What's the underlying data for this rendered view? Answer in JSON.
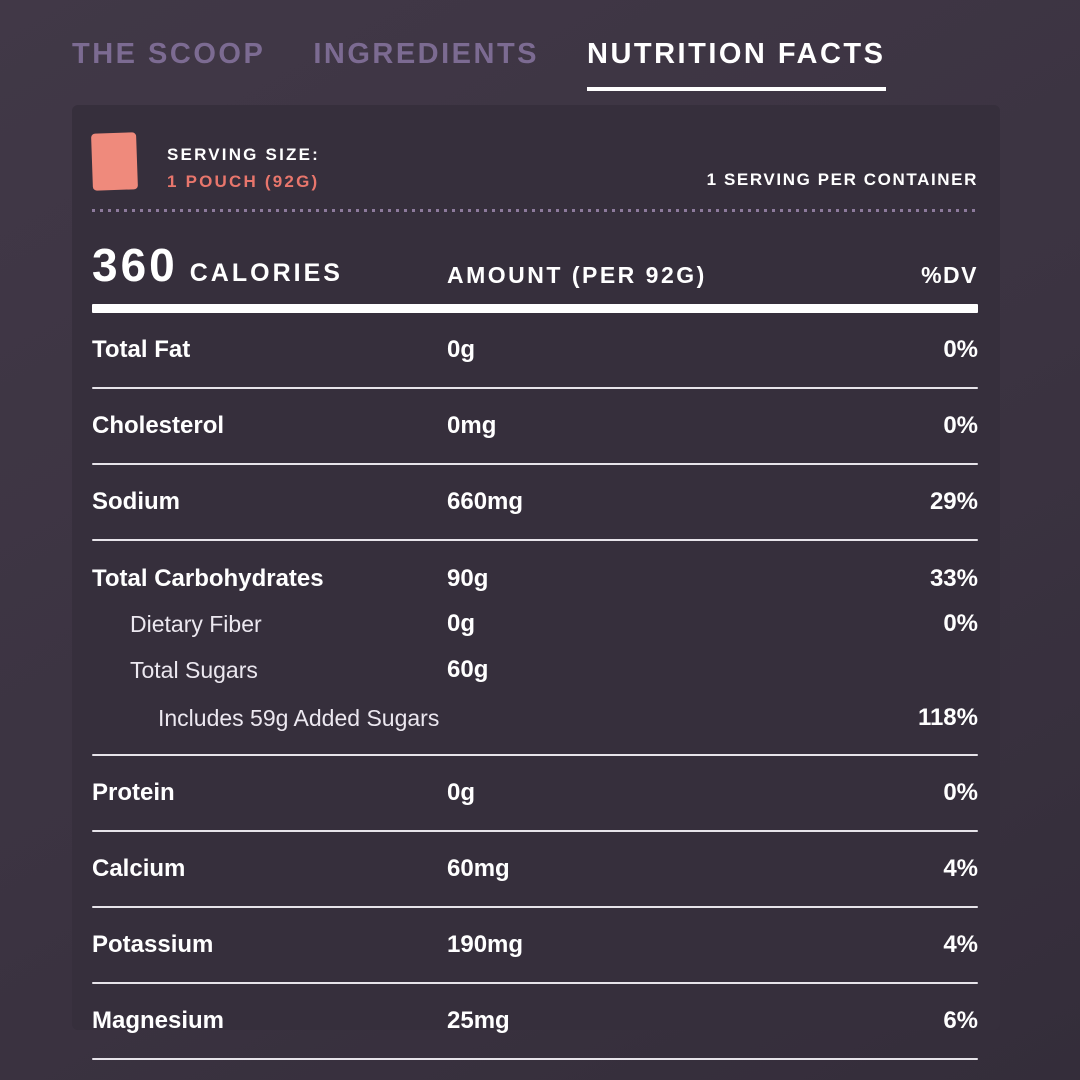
{
  "tabs": [
    {
      "label": "THE SCOOP",
      "active": false
    },
    {
      "label": "INGREDIENTS",
      "active": false
    },
    {
      "label": "NUTRITION FACTS",
      "active": true
    }
  ],
  "panel": {
    "serving": {
      "icon": "pouch-icon",
      "size_label": "SERVING SIZE:",
      "size_value": "1 POUCH (92G)",
      "per_container": "1 SERVING PER CONTAINER"
    },
    "header": {
      "calories_value": "360",
      "calories_label": "CALORIES",
      "amount_header": "AMOUNT (PER 92G)",
      "dv_header": "%DV"
    },
    "rows": [
      {
        "label": "Total Fat",
        "amount": "0g",
        "dv": "0%",
        "indent": 0
      },
      {
        "label": "Cholesterol",
        "amount": "0mg",
        "dv": "0%",
        "indent": 0
      },
      {
        "label": "Sodium",
        "amount": "660mg",
        "dv": "29%",
        "indent": 0
      },
      {
        "label": "Total Carbohydrates",
        "amount": "90g",
        "dv": "33%",
        "indent": 0
      },
      {
        "label": "Dietary Fiber",
        "amount": "0g",
        "dv": "0%",
        "indent": 1
      },
      {
        "label": "Total Sugars",
        "amount": "60g",
        "dv": "",
        "indent": 1
      },
      {
        "label": "Includes 59g Added Sugars",
        "amount": "",
        "dv": "118%",
        "indent": 2
      },
      {
        "label": "Protein",
        "amount": "0g",
        "dv": "0%",
        "indent": 0
      },
      {
        "label": "Calcium",
        "amount": "60mg",
        "dv": "4%",
        "indent": 0
      },
      {
        "label": "Potassium",
        "amount": "190mg",
        "dv": "4%",
        "indent": 0
      },
      {
        "label": "Magnesium",
        "amount": "25mg",
        "dv": "6%",
        "indent": 0
      }
    ]
  },
  "colors": {
    "page_background": "#3b3341",
    "card_background": "#362f3c",
    "accent_coral": "#e8766c",
    "pouch_coral": "#ef8a7c",
    "tab_inactive": "#7c6b92",
    "tab_active": "#ffffff",
    "dotted_line": "#8d7a9c"
  }
}
